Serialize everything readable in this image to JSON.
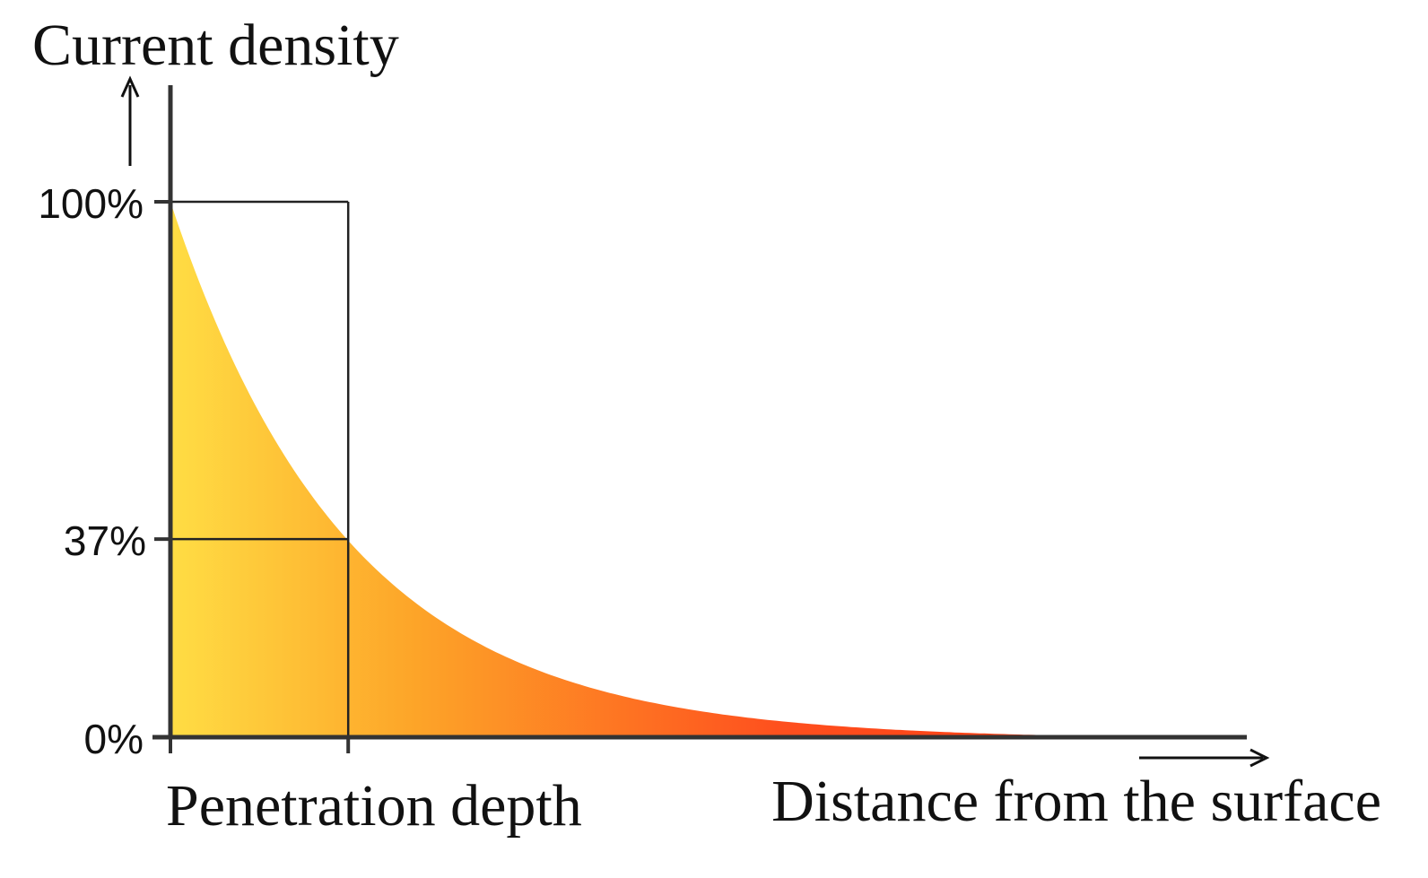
{
  "chart_data": {
    "type": "area",
    "ylabel": "Current density",
    "xlabel": "Distance from the surface",
    "x_marker_label": "Penetration depth",
    "y_ticks": [
      {
        "value": 100,
        "label": "100%"
      },
      {
        "value": 37,
        "label": "37%"
      },
      {
        "value": 0,
        "label": "0%"
      }
    ],
    "ylim": [
      0,
      100
    ],
    "xlim": [
      0,
      5.55
    ],
    "penetration_depth": 1,
    "series": [
      {
        "curve": "exponential-decay",
        "x": [
          0,
          0.25,
          0.5,
          0.75,
          1,
          1.25,
          1.5,
          1.75,
          2,
          2.25,
          2.5,
          2.75,
          3,
          3.25,
          3.5,
          3.75,
          4,
          4.25,
          4.5,
          4.75,
          5,
          5.25,
          5.55
        ],
        "values": [
          100,
          77.9,
          60.7,
          47.2,
          36.8,
          28.7,
          22.3,
          17.4,
          13.5,
          10.5,
          8.2,
          6.4,
          5.0,
          3.9,
          3.0,
          2.4,
          1.8,
          1.4,
          1.1,
          0.9,
          0.7,
          0.5,
          0
        ]
      }
    ],
    "grid": false,
    "legend": false,
    "gradient_colors": [
      "#ffdd44",
      "#fda428",
      "#fe4f1e",
      "#ff3a12"
    ],
    "axis_color": "#333333"
  }
}
